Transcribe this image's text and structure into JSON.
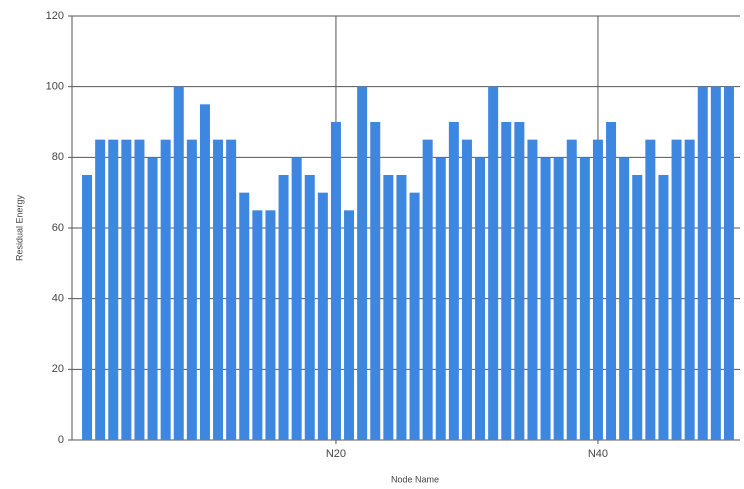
{
  "chart_data": {
    "type": "bar",
    "x_label": "Node Name",
    "y_label": "Residual Energy",
    "categories": [
      null,
      null,
      null,
      null,
      null,
      null,
      null,
      null,
      null,
      null,
      null,
      null,
      null,
      null,
      null,
      null,
      null,
      null,
      null,
      "N20",
      null,
      null,
      null,
      null,
      null,
      null,
      null,
      null,
      null,
      null,
      null,
      null,
      null,
      null,
      null,
      null,
      null,
      null,
      null,
      "N40",
      null,
      null,
      null,
      null,
      null,
      null,
      null,
      null,
      null,
      null
    ],
    "values": [
      75,
      85,
      85,
      85,
      85,
      80,
      85,
      100,
      85,
      95,
      85,
      85,
      70,
      65,
      65,
      75,
      80,
      75,
      70,
      90,
      65,
      100,
      90,
      75,
      75,
      70,
      85,
      80,
      90,
      85,
      80,
      100,
      90,
      90,
      85,
      80,
      80,
      85,
      80,
      85,
      90,
      80,
      75,
      85,
      75,
      85,
      85,
      100,
      100,
      100
    ],
    "color": "#3d87e0",
    "ylim": [
      0,
      120
    ],
    "yticks": [
      0,
      20,
      40,
      60,
      80,
      100,
      120
    ],
    "grid": true
  }
}
